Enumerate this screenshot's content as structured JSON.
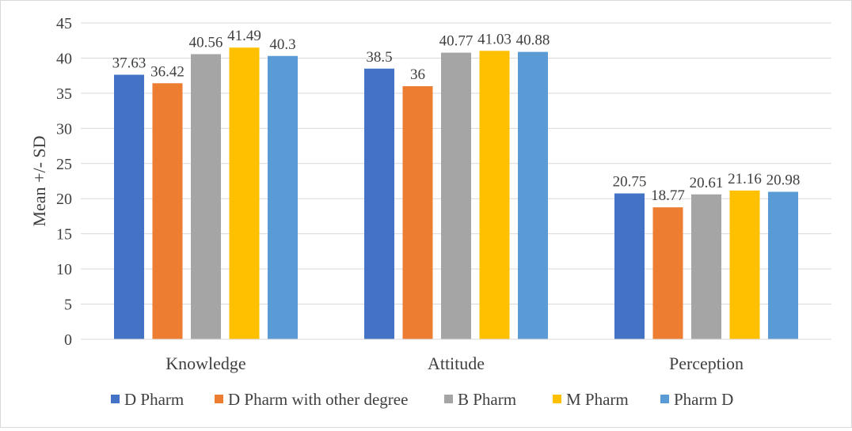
{
  "chart_data": {
    "type": "bar",
    "title": "",
    "xlabel": "",
    "ylabel": "Mean +/- SD",
    "ylim": [
      0,
      45
    ],
    "yticks": [
      0,
      5,
      10,
      15,
      20,
      25,
      30,
      35,
      40,
      45
    ],
    "grid": true,
    "legend_position": "bottom",
    "categories": [
      "Knowledge",
      "Attitude",
      "Perception"
    ],
    "series": [
      {
        "name": "D Pharm",
        "color": "#4472c4",
        "values": [
          37.63,
          38.5,
          20.75
        ],
        "labels": [
          "37.63",
          "38.5",
          "20.75"
        ]
      },
      {
        "name": "D Pharm with other degree",
        "color": "#ed7d31",
        "values": [
          36.42,
          36,
          18.77
        ],
        "labels": [
          "36.42",
          "36",
          "18.77"
        ]
      },
      {
        "name": "B Pharm",
        "color": "#a5a5a5",
        "values": [
          40.56,
          40.77,
          20.61
        ],
        "labels": [
          "40.56",
          "40.77",
          "20.61"
        ]
      },
      {
        "name": "M Pharm",
        "color": "#ffc000",
        "values": [
          41.49,
          41.03,
          21.16
        ],
        "labels": [
          "41.49",
          "41.03",
          "21.16"
        ]
      },
      {
        "name": "Pharm D",
        "color": "#5b9bd5",
        "values": [
          40.3,
          40.88,
          20.98
        ],
        "labels": [
          "40.3",
          "40.88",
          "20.98"
        ]
      }
    ]
  }
}
